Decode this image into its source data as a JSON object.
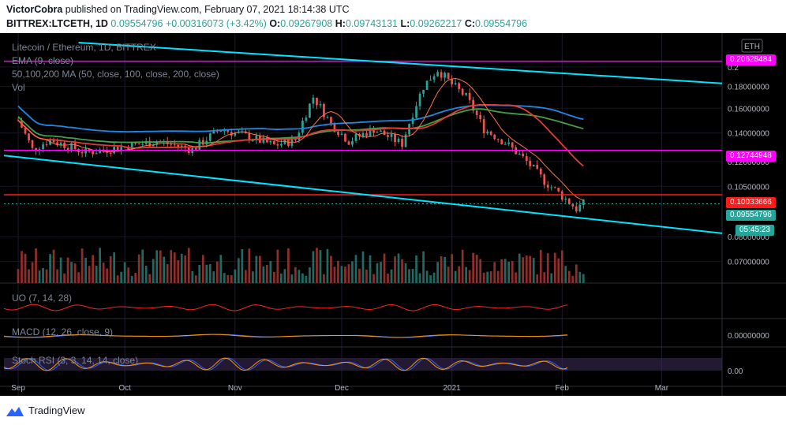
{
  "header": {
    "line1_prefix": "VictorCobra",
    "line1_rest": " published on TradingView.com, February 07, 2021 18:14:38 UTC",
    "symbol": "BITTREX:LTCETH, 1D",
    "last": "0.09554796",
    "change": "+0.00316073 (+3.42%)",
    "open_label": "O:",
    "open": "0.09267908",
    "high_label": "H:",
    "high": "0.09743131",
    "low_label": "L:",
    "low": "0.09262217",
    "close_label": "C:",
    "close": "0.09554796"
  },
  "legend": {
    "title": "Litecoin / Ethereum, 1D, BITTREX",
    "ema": "EMA (9, close)",
    "ma": "50,100,200 MA (50, close, 100, close, 200, close)",
    "vol": "Vol",
    "uo": "UO (7, 14, 28)",
    "macd": "MACD (12, 26, close, 9)",
    "stoch": "Stoch RSI (3, 3, 14, 14, close)"
  },
  "axis": {
    "currency": "ETH",
    "price_ticks": [
      "0.2",
      "0.18000000",
      "0.16000000",
      "0.14000000",
      "0.12000000",
      "0.10500000",
      "0.08000000",
      "0.07000000"
    ],
    "macd_tick": "0.00000000",
    "stoch_tick": "0.00",
    "x_ticks": [
      "Sep",
      "Oct",
      "Nov",
      "Dec",
      "2021",
      "Feb",
      "Mar"
    ]
  },
  "price_tags": {
    "resistance_top": "0.20628484",
    "resistance_mid": "0.12744948",
    "support_red": "0.10033666",
    "last_price": "0.09554796",
    "countdown": "05:45:23"
  },
  "colors": {
    "up": "#26a69a",
    "down": "#ef5350",
    "magenta": "#ff00ff",
    "cyan": "#00e5ff",
    "red_line": "#ff1a1a",
    "ma50": "#e53935",
    "ma100": "#43a047",
    "ma200": "#1e88e5",
    "ema": "#ff7043"
  },
  "chart_data": {
    "type": "candlestick",
    "title": "Litecoin / Ethereum, 1D, BITTREX",
    "y_scale": "log",
    "ylim": [
      0.065,
      0.23
    ],
    "x_range": [
      "2020-08-28",
      "2021-03-18"
    ],
    "horizontal_levels": [
      0.20628484,
      0.12744948,
      0.10033666
    ],
    "last_close": 0.09554796,
    "channel": {
      "upper": [
        [
          "2020-09-18",
          0.228
        ],
        [
          "2021-03-18",
          0.183
        ]
      ],
      "lower": [
        [
          "2020-08-28",
          0.124
        ],
        [
          "2021-03-18",
          0.0815
        ]
      ]
    },
    "close_series": [
      [
        "2020-09-01",
        0.15
      ],
      [
        "2020-09-05",
        0.128
      ],
      [
        "2020-09-10",
        0.135
      ],
      [
        "2020-09-20",
        0.126
      ],
      [
        "2020-10-01",
        0.13
      ],
      [
        "2020-10-10",
        0.134
      ],
      [
        "2020-10-20",
        0.128
      ],
      [
        "2020-10-28",
        0.143
      ],
      [
        "2020-11-05",
        0.137
      ],
      [
        "2020-11-12",
        0.131
      ],
      [
        "2020-11-18",
        0.135
      ],
      [
        "2020-11-23",
        0.17
      ],
      [
        "2020-11-28",
        0.147
      ],
      [
        "2020-12-03",
        0.134
      ],
      [
        "2020-12-10",
        0.143
      ],
      [
        "2020-12-18",
        0.132
      ],
      [
        "2020-12-24",
        0.18
      ],
      [
        "2020-12-28",
        0.197
      ],
      [
        "2021-01-01",
        0.182
      ],
      [
        "2021-01-05",
        0.17
      ],
      [
        "2021-01-10",
        0.143
      ],
      [
        "2021-01-16",
        0.133
      ],
      [
        "2021-01-22",
        0.12
      ],
      [
        "2021-01-27",
        0.108
      ],
      [
        "2021-02-02",
        0.098
      ],
      [
        "2021-02-05",
        0.093
      ],
      [
        "2021-02-07",
        0.0955
      ]
    ]
  }
}
